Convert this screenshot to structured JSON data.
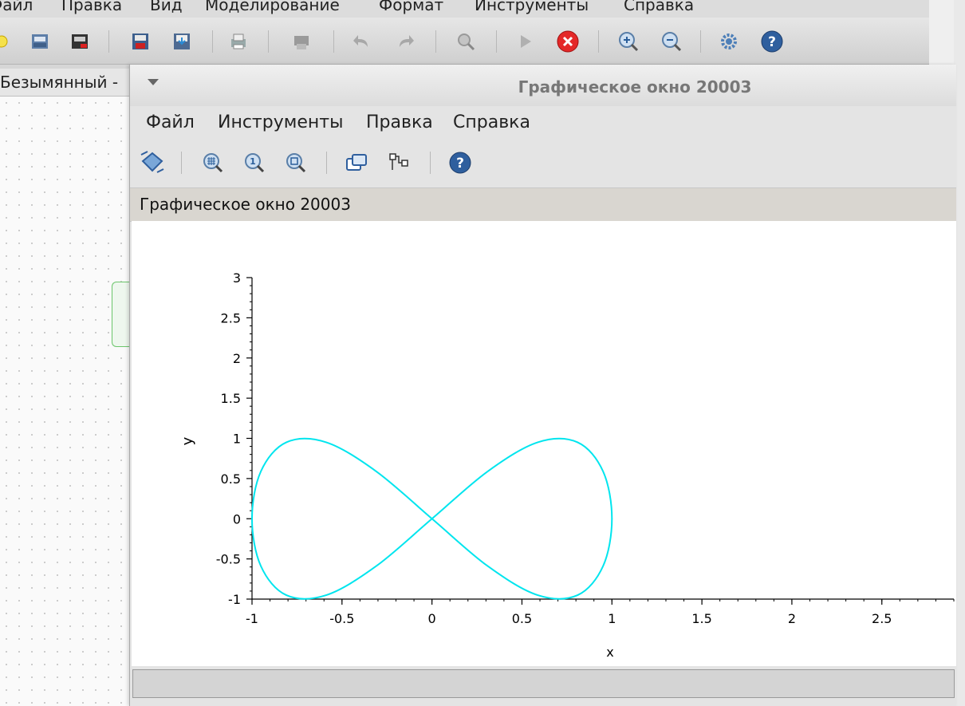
{
  "main_window": {
    "menu": [
      "Файл",
      "Правка",
      "Вид",
      "Моделирование",
      "Формат",
      "Инструменты",
      "Справка"
    ],
    "tab_label": "Безымянный -",
    "toolbar_icons": [
      "new-diagram-icon",
      "open-icon",
      "open-file-icon",
      "save-icon",
      "save-as-icon",
      "print-icon",
      "export-icon",
      "undo-icon",
      "redo-icon",
      "zoom-fit-icon",
      "start-simulation-icon",
      "stop-simulation-icon",
      "zoom-in-icon",
      "zoom-out-icon",
      "settings-icon",
      "help-icon"
    ]
  },
  "graphic_window": {
    "title": "Графическое окно 20003",
    "menu": [
      "Файл",
      "Инструменты",
      "Правка",
      "Справка"
    ],
    "figure_label": "Графическое окно 20003",
    "toolbar_icons": [
      "rotate-icon",
      "zoom-area-icon",
      "zoom-reset-icon",
      "zoom-icon",
      "figure-datatip-icon",
      "editor-icon",
      "help-icon"
    ]
  },
  "chart_data": {
    "type": "line",
    "title": "",
    "xlabel": "x",
    "ylabel": "y",
    "xlim": [
      -1,
      2.9
    ],
    "ylim": [
      -1,
      3
    ],
    "xticks": [
      -1,
      -0.5,
      0,
      0.5,
      1,
      1.5,
      2,
      2.5
    ],
    "yticks": [
      -1,
      -0.5,
      0,
      0.5,
      1,
      1.5,
      2,
      2.5,
      3
    ],
    "xtick_labels": [
      "-1",
      "-0.5",
      "0",
      "0.5",
      "1",
      "1.5",
      "2",
      "2.5"
    ],
    "ytick_labels": [
      "-1",
      "-0.5",
      "0",
      "0.5",
      "1",
      "1.5",
      "2",
      "2.5",
      "3"
    ],
    "grid": false,
    "series_color": "#00e5ee",
    "series": [
      {
        "x": [
          1,
          0.951,
          0.809,
          0.588,
          0.309,
          0,
          -0.309,
          -0.588,
          -0.809,
          -0.951,
          -1,
          -0.951,
          -0.809,
          -0.588,
          -0.309,
          0,
          0.309,
          0.588,
          0.809,
          0.951,
          1
        ],
        "y": [
          0,
          0.588,
          0.951,
          0.951,
          0.588,
          0,
          -0.588,
          -0.951,
          -0.951,
          -0.588,
          0,
          0.588,
          0.951,
          0.951,
          0.588,
          0,
          -0.588,
          -0.951,
          -0.951,
          -0.588,
          0
        ]
      }
    ]
  }
}
